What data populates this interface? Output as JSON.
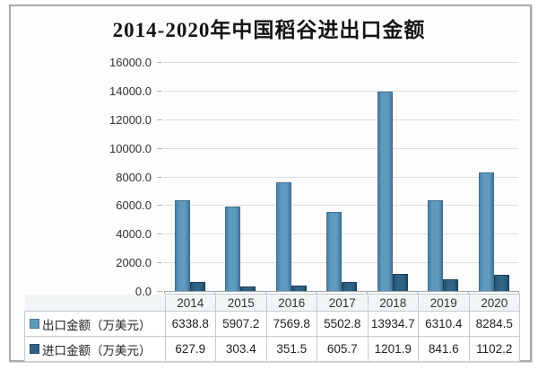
{
  "title": "2014-2020年中国稻谷进出口金额",
  "chart_data": {
    "type": "bar",
    "title": "2014-2020年中国稻谷进出口金额",
    "categories": [
      "2014",
      "2015",
      "2016",
      "2017",
      "2018",
      "2019",
      "2020"
    ],
    "series": [
      {
        "key": "export",
        "name": "出口金额（万美元）",
        "color": "#5e9abf",
        "values": [
          6338.8,
          5907.2,
          7569.8,
          5502.8,
          13934.7,
          6310.4,
          8284.5
        ],
        "labels": [
          "6338.8",
          "5907.2",
          "7569.8",
          "5502.8",
          "13934.7",
          "6310.4",
          "8284.5"
        ]
      },
      {
        "key": "import",
        "name": "进口金额（万美元）",
        "color": "#2f6488",
        "values": [
          627.9,
          303.4,
          351.5,
          605.7,
          1201.9,
          841.6,
          1102.2
        ],
        "labels": [
          "627.9",
          "303.4",
          "351.5",
          "605.7",
          "1201.9",
          "841.6",
          "1102.2"
        ]
      }
    ],
    "ylim": [
      0,
      16000
    ],
    "y_ticks": [
      "16000.0",
      "14000.0",
      "12000.0",
      "10000.0",
      "8000.0",
      "6000.0",
      "4000.0",
      "2000.0",
      "0.0"
    ],
    "grid": true,
    "legend_position": "table-left"
  },
  "colors": {
    "export_bar": "#5e9abf",
    "import_bar": "#2f6488",
    "gridline": "#dcdfe2",
    "axis_line": "#9aa3a8",
    "frame_border": "#a6abae",
    "table_border": "#c2cbd0",
    "header_bg": "#f2f5f6"
  }
}
